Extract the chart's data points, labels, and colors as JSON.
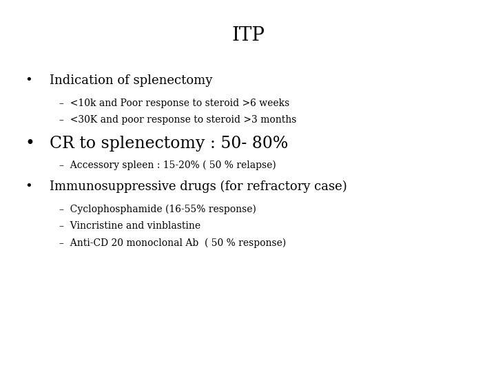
{
  "title": "ITP",
  "background_color": "#ffffff",
  "text_color": "#000000",
  "title_fontsize": 20,
  "title_font": "serif",
  "bullet1": "Indication of splenectomy",
  "bullet1_fontsize": 13,
  "bullet1_font": "serif",
  "sub1a": "–  <10k and Poor response to steroid >6 weeks",
  "sub1b": "–  <30K and poor response to steroid >3 months",
  "sub_fontsize": 10,
  "sub_font": "serif",
  "bullet2": "CR to splenectomy : 50- 80%",
  "bullet2_fontsize": 17,
  "bullet2_font": "serif",
  "sub2a": "–  Accessory spleen : 15-20% ( 50 % relapse)",
  "bullet3": "Immunosuppressive drugs (for refractory case)",
  "bullet3_fontsize": 13,
  "bullet3_font": "serif",
  "sub3a": "–  Cyclophosphamide (16-55% response)",
  "sub3b": "–  Vincristine and vinblastine",
  "sub3c": "–  Anti-CD 20 monoclonal Ab  ( 50 % response)"
}
